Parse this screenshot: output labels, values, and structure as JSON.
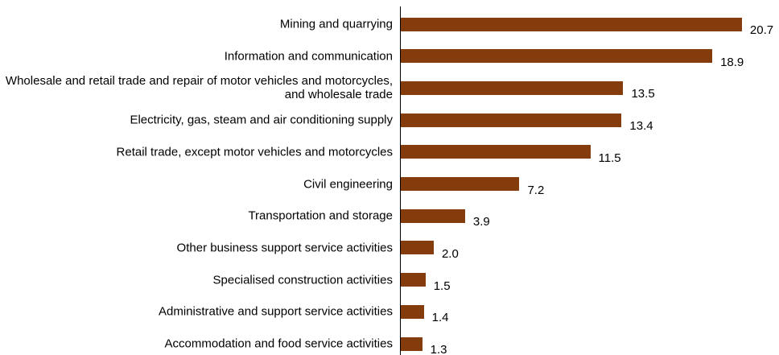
{
  "chart_data": {
    "type": "bar",
    "orientation": "horizontal",
    "color": "#843c0c",
    "categories": [
      "Mining and quarrying",
      "Information and communication",
      "Wholesale and retail trade and repair of motor vehicles and motorcycles, and wholesale trade",
      "Electricity, gas, steam and air conditioning supply",
      "Retail trade, except motor vehicles and motorcycles",
      "Civil engineering",
      "Transportation and storage",
      "Other business support service activities",
      "Specialised construction activities",
      "Administrative and support service activities",
      "Accommodation and food service activities"
    ],
    "values": [
      20.7,
      18.9,
      13.5,
      13.4,
      11.5,
      7.2,
      3.9,
      2.0,
      1.5,
      1.4,
      1.3
    ],
    "value_labels": [
      "20.7",
      "18.9",
      "13.5",
      "13.4",
      "11.5",
      "7.2",
      "3.9",
      "2.0",
      "1.5",
      "1.4",
      "1.3"
    ]
  }
}
